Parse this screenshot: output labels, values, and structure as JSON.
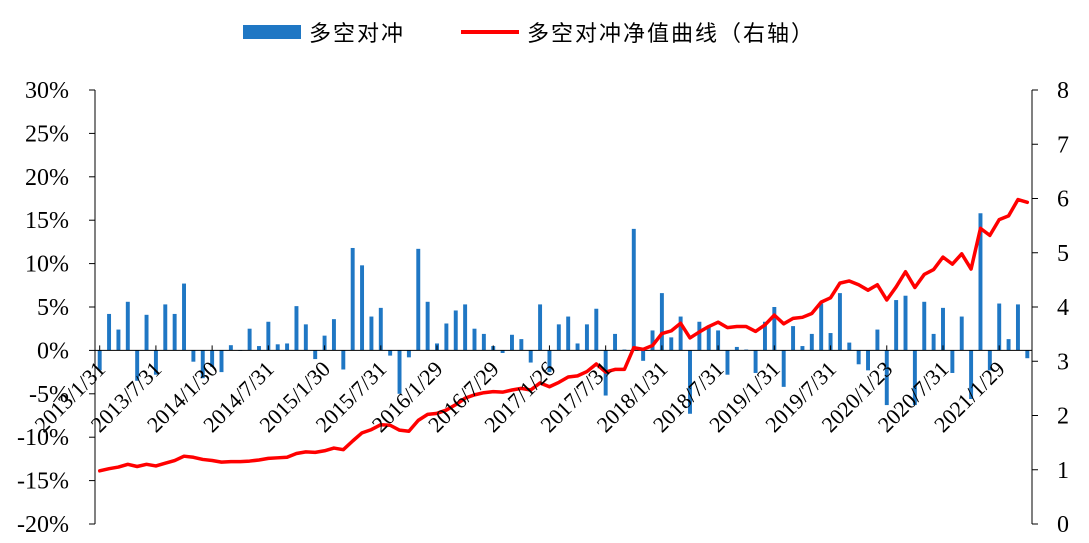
{
  "legend": {
    "bar_label": "多空对冲",
    "line_label": "多空对冲净值曲线（右轴）"
  },
  "colors": {
    "bar": "#1f77c4",
    "line": "#ff0000",
    "axis": "#000000"
  },
  "chart_data": {
    "type": "bar",
    "title": "",
    "xlabel": "",
    "ylabel": "",
    "x_tick_labels": [
      "2013/1/31",
      "2013/7/31",
      "2014/1/30",
      "2014/7/31",
      "2015/1/30",
      "2015/7/31",
      "2016/1/29",
      "2016/7/29",
      "2017/1/26",
      "2017/7/31",
      "2018/1/31",
      "2018/7/31",
      "2019/1/31",
      "2019/7/31",
      "2020/1/23",
      "2020/7/31",
      "2021/1/29"
    ],
    "y_left": {
      "min": -20,
      "max": 30,
      "step": 5,
      "tick_labels": [
        "30%",
        "25%",
        "20%",
        "15%",
        "10%",
        "5%",
        "0%",
        "-5%",
        "-10%",
        "-15%",
        "-20%"
      ]
    },
    "y_right": {
      "min": 0,
      "max": 8,
      "step": 1,
      "tick_labels": [
        "8",
        "7",
        "6",
        "5",
        "4",
        "3",
        "2",
        "1",
        "0"
      ]
    },
    "series": [
      {
        "name": "多空对冲",
        "type": "bar",
        "axis": "left",
        "unit": "%",
        "values": [
          -2.3,
          4.2,
          2.4,
          5.6,
          -3.5,
          4.1,
          -2.8,
          5.3,
          4.2,
          7.7,
          -1.3,
          -3.2,
          -1.9,
          -2.5,
          0.6,
          0.0,
          2.5,
          0.5,
          3.3,
          0.7,
          0.8,
          5.1,
          3.0,
          -1.0,
          1.7,
          3.6,
          -2.2,
          11.8,
          9.8,
          3.9,
          4.9,
          -0.6,
          -5.0,
          -0.8,
          11.7,
          5.6,
          0.8,
          3.1,
          4.6,
          5.3,
          2.5,
          1.9,
          0.5,
          -0.3,
          1.8,
          1.3,
          -1.4,
          5.3,
          -2.5,
          3.0,
          3.9,
          0.8,
          3.0,
          4.8,
          -5.2,
          1.9,
          0.1,
          14.0,
          -1.2,
          2.3,
          6.6,
          1.5,
          3.9,
          -7.3,
          3.3,
          2.8,
          2.3,
          -2.8,
          0.4,
          0.1,
          -2.6,
          3.3,
          5.0,
          -4.2,
          2.8,
          0.5,
          1.9,
          5.4,
          2.0,
          6.6,
          0.9,
          -1.6,
          -2.3,
          2.4,
          -6.3,
          5.8,
          6.3,
          -6.3,
          5.6,
          1.9,
          4.9,
          -2.6,
          3.9,
          -5.6,
          15.8,
          -2.3,
          5.4,
          1.3,
          5.3,
          -0.9
        ]
      },
      {
        "name": "多空对冲净值曲线（右轴）",
        "type": "line",
        "axis": "right",
        "values": [
          0.98,
          1.02,
          1.05,
          1.1,
          1.06,
          1.1,
          1.07,
          1.12,
          1.17,
          1.25,
          1.23,
          1.19,
          1.17,
          1.14,
          1.15,
          1.15,
          1.16,
          1.18,
          1.21,
          1.22,
          1.23,
          1.3,
          1.33,
          1.32,
          1.35,
          1.4,
          1.37,
          1.53,
          1.68,
          1.74,
          1.83,
          1.82,
          1.73,
          1.71,
          1.91,
          2.02,
          2.04,
          2.1,
          2.2,
          2.32,
          2.38,
          2.42,
          2.44,
          2.43,
          2.47,
          2.5,
          2.47,
          2.6,
          2.53,
          2.61,
          2.71,
          2.73,
          2.81,
          2.95,
          2.8,
          2.85,
          2.85,
          3.25,
          3.22,
          3.29,
          3.51,
          3.56,
          3.7,
          3.43,
          3.54,
          3.64,
          3.72,
          3.62,
          3.64,
          3.64,
          3.55,
          3.67,
          3.85,
          3.69,
          3.79,
          3.81,
          3.88,
          4.09,
          4.17,
          4.44,
          4.48,
          4.41,
          4.31,
          4.41,
          4.13,
          4.37,
          4.65,
          4.36,
          4.6,
          4.69,
          4.92,
          4.79,
          4.98,
          4.7,
          5.45,
          5.32,
          5.61,
          5.68,
          5.98,
          5.93
        ]
      }
    ],
    "grid": false,
    "legend_position": "top-center"
  }
}
